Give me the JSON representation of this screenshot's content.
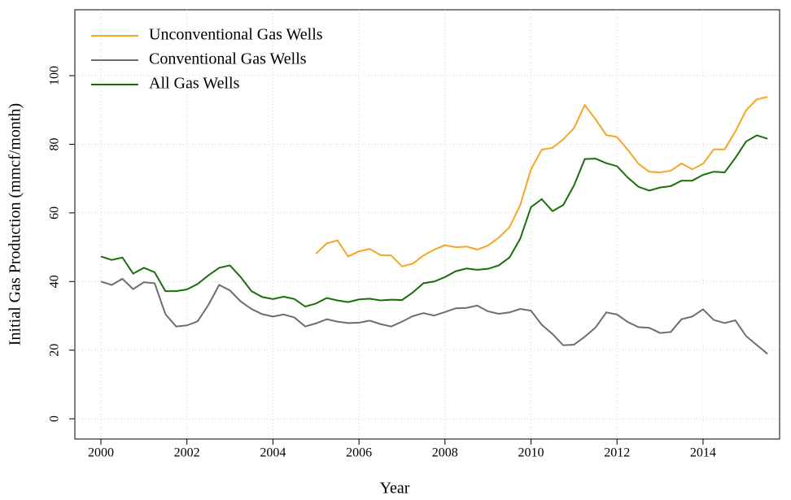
{
  "chart_data": {
    "type": "line",
    "x_label": "Year",
    "y_label": "Initial Gas Production (mmcf/month)",
    "x": [
      2000,
      2000.25,
      2000.5,
      2000.75,
      2001,
      2001.25,
      2001.5,
      2001.75,
      2002,
      2002.25,
      2002.5,
      2002.75,
      2003,
      2003.25,
      2003.5,
      2003.75,
      2004,
      2004.25,
      2004.5,
      2004.75,
      2005,
      2005.25,
      2005.5,
      2005.75,
      2006,
      2006.25,
      2006.5,
      2006.75,
      2007,
      2007.25,
      2007.5,
      2007.75,
      2008,
      2008.25,
      2008.5,
      2008.75,
      2009,
      2009.25,
      2009.5,
      2009.75,
      2010,
      2010.25,
      2010.5,
      2010.75,
      2011,
      2011.25,
      2011.5,
      2011.75,
      2012,
      2012.25,
      2012.5,
      2012.75,
      2013,
      2013.25,
      2013.5,
      2013.75,
      2014,
      2014.25,
      2014.5,
      2014.75,
      2015,
      2015.25,
      2015.5
    ],
    "series": [
      {
        "name": "Unconventional Gas Wells",
        "color": "#f5a623",
        "values": [
          null,
          null,
          null,
          null,
          null,
          null,
          null,
          null,
          null,
          null,
          null,
          null,
          null,
          null,
          null,
          null,
          null,
          null,
          null,
          null,
          48.1,
          51.1,
          52.0,
          47.3,
          48.8,
          49.5,
          47.7,
          47.6,
          44.4,
          45.2,
          47.6,
          49.3,
          50.6,
          50,
          50.2,
          49.3,
          50.5,
          52.8,
          55.8,
          62.3,
          72.7,
          78.4,
          79,
          81.4,
          84.7,
          91.4,
          87.3,
          82.7,
          82.1,
          78.4,
          74.3,
          72,
          71.8,
          72.3,
          74.4,
          72.7,
          74.3,
          78.5,
          78.5,
          83.7,
          89.9,
          93.1,
          93.8
        ]
      },
      {
        "name": "Conventional Gas Wells",
        "color": "#6e6e6e",
        "values": [
          40,
          39,
          40.8,
          37.8,
          39.8,
          39.5,
          30.5,
          26.9,
          27.2,
          28.4,
          33.2,
          39,
          37.4,
          34.2,
          32,
          30.5,
          29.8,
          30.4,
          29.5,
          26.9,
          27.8,
          29,
          28.3,
          27.9,
          28,
          28.6,
          27.6,
          26.9,
          28.3,
          29.9,
          30.8,
          30.1,
          31.1,
          32.2,
          32.3,
          33,
          31.3,
          30.6,
          31,
          32,
          31.5,
          27.4,
          24.7,
          21.4,
          21.6,
          23.9,
          26.6,
          31,
          30.4,
          28.2,
          26.7,
          26.5,
          25,
          25.3,
          29,
          29.8,
          31.9,
          28.8,
          27.9,
          28.7,
          24.1,
          21.5,
          18.9
        ]
      },
      {
        "name": "All Gas Wells",
        "color": "#1a6e0a",
        "values": [
          47.3,
          46.3,
          47,
          42.3,
          44,
          42.7,
          37.2,
          37.2,
          37.7,
          39.3,
          41.8,
          44,
          44.7,
          41.3,
          37.2,
          35.5,
          34.9,
          35.6,
          34.9,
          32.7,
          33.6,
          35.2,
          34.5,
          34,
          34.8,
          35,
          34.5,
          34.7,
          34.6,
          36.8,
          39.5,
          40,
          41.3,
          43,
          43.8,
          43.4,
          43.7,
          44.7,
          47,
          52.5,
          61.7,
          64,
          60.5,
          62.3,
          68,
          75.7,
          75.8,
          74.5,
          73.6,
          70.3,
          67.6,
          66.5,
          67.4,
          67.8,
          69.4,
          69.4,
          71.1,
          72,
          71.8,
          76,
          80.8,
          82.6,
          81.6
        ]
      }
    ],
    "xlim": [
      1999.395,
      2015.78
    ],
    "ylim": [
      -5.9,
      119.2
    ],
    "xticks": [
      2000,
      2002,
      2004,
      2006,
      2008,
      2010,
      2012,
      2014
    ],
    "yticks": [
      0,
      20,
      40,
      60,
      80,
      100
    ],
    "grid": true,
    "legend": "top-left"
  }
}
